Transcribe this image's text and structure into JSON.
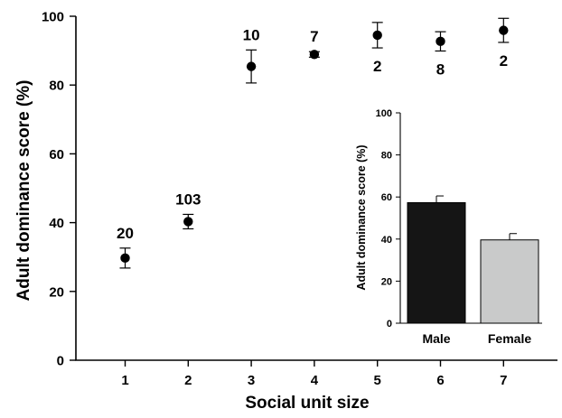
{
  "chart_data": [
    {
      "type": "scatter",
      "xlabel": "Social unit size",
      "ylabel": "Adult dominance score (%)",
      "xlim": [
        0,
        7.6
      ],
      "ylim": [
        0,
        100
      ],
      "x_ticks": [
        "1",
        "2",
        "3",
        "4",
        "5",
        "6",
        "7"
      ],
      "y_ticks": [
        "0",
        "20",
        "40",
        "60",
        "80",
        "100"
      ],
      "x": [
        1,
        2,
        3,
        4,
        5,
        6,
        7
      ],
      "y": [
        29.7,
        40.3,
        85.4,
        88.9,
        94.5,
        92.7,
        95.9
      ],
      "error": [
        2.9,
        2.1,
        4.8,
        0.8,
        3.7,
        2.8,
        3.5
      ],
      "n_labels": [
        "20",
        "103",
        "10",
        "7",
        "2",
        "8",
        "2"
      ],
      "n_label_position": [
        "above",
        "above",
        "above",
        "above",
        "below",
        "below",
        "below"
      ]
    },
    {
      "type": "bar",
      "categories": [
        "Male",
        "Female"
      ],
      "values": [
        57.3,
        39.6
      ],
      "error": [
        3.2,
        3.0
      ],
      "colors": [
        "#151515",
        "#c9caca"
      ],
      "ylabel": "Adult dominance score (%)",
      "ylim": [
        0,
        100
      ],
      "y_ticks": [
        "0",
        "20",
        "40",
        "60",
        "80",
        "100"
      ]
    }
  ]
}
